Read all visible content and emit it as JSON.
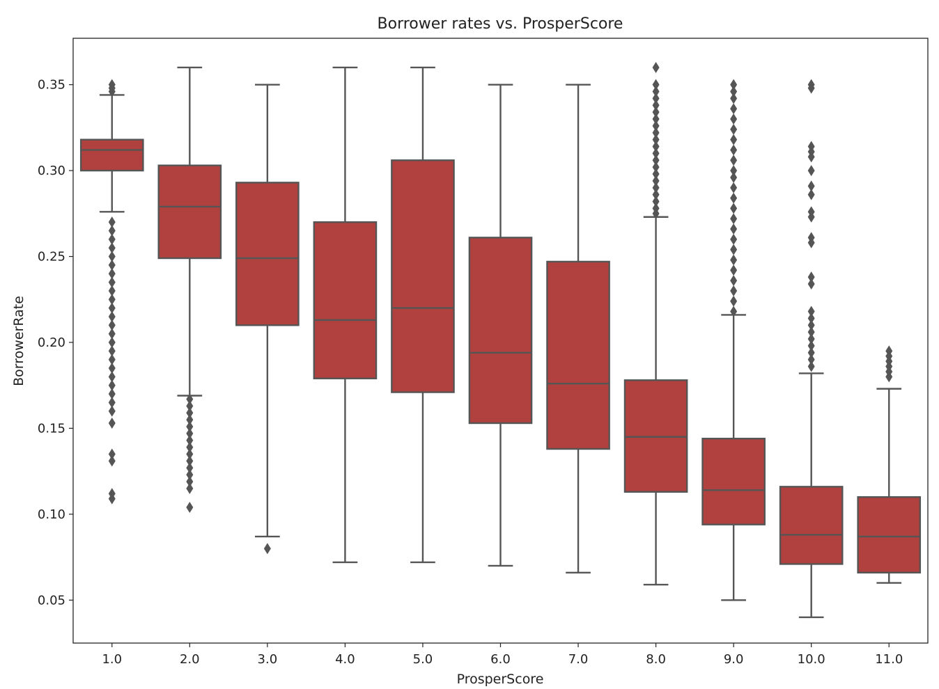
{
  "chart_data": {
    "type": "box",
    "title": "Borrower rates vs. ProsperScore",
    "xlabel": "ProsperScore",
    "ylabel": "BorrowerRate",
    "ylim": [
      0.025,
      0.377
    ],
    "yticks": [
      "0.05",
      "0.10",
      "0.15",
      "0.20",
      "0.25",
      "0.30",
      "0.35"
    ],
    "ytick_values": [
      0.05,
      0.1,
      0.15,
      0.2,
      0.25,
      0.3,
      0.35
    ],
    "categories": [
      "1.0",
      "2.0",
      "3.0",
      "4.0",
      "5.0",
      "6.0",
      "7.0",
      "8.0",
      "9.0",
      "10.0",
      "11.0"
    ],
    "grid": false,
    "box_color": "#b0413e",
    "line_color": "#555555",
    "boxes": [
      {
        "category": "1.0",
        "whislo": 0.276,
        "q1": 0.3,
        "median": 0.312,
        "q3": 0.318,
        "whishi": 0.344,
        "fliers": [
          0.35,
          0.348,
          0.346,
          0.27,
          0.265,
          0.26,
          0.255,
          0.25,
          0.245,
          0.24,
          0.235,
          0.23,
          0.225,
          0.22,
          0.215,
          0.21,
          0.205,
          0.2,
          0.195,
          0.19,
          0.185,
          0.18,
          0.175,
          0.17,
          0.165,
          0.16,
          0.153,
          0.135,
          0.131,
          0.112,
          0.109
        ]
      },
      {
        "category": "2.0",
        "whislo": 0.169,
        "q1": 0.249,
        "median": 0.279,
        "q3": 0.303,
        "whishi": 0.36,
        "fliers": [
          0.167,
          0.163,
          0.159,
          0.155,
          0.151,
          0.147,
          0.143,
          0.139,
          0.135,
          0.131,
          0.127,
          0.123,
          0.119,
          0.115,
          0.104
        ]
      },
      {
        "category": "3.0",
        "whislo": 0.087,
        "q1": 0.21,
        "median": 0.249,
        "q3": 0.293,
        "whishi": 0.35,
        "fliers": [
          0.08
        ]
      },
      {
        "category": "4.0",
        "whislo": 0.072,
        "q1": 0.179,
        "median": 0.213,
        "q3": 0.27,
        "whishi": 0.36,
        "fliers": []
      },
      {
        "category": "5.0",
        "whislo": 0.072,
        "q1": 0.171,
        "median": 0.22,
        "q3": 0.306,
        "whishi": 0.36,
        "fliers": []
      },
      {
        "category": "6.0",
        "whislo": 0.07,
        "q1": 0.153,
        "median": 0.194,
        "q3": 0.261,
        "whishi": 0.35,
        "fliers": []
      },
      {
        "category": "7.0",
        "whislo": 0.066,
        "q1": 0.138,
        "median": 0.176,
        "q3": 0.247,
        "whishi": 0.35,
        "fliers": []
      },
      {
        "category": "8.0",
        "whislo": 0.059,
        "q1": 0.113,
        "median": 0.145,
        "q3": 0.178,
        "whishi": 0.273,
        "fliers": [
          0.36,
          0.35,
          0.346,
          0.342,
          0.338,
          0.334,
          0.33,
          0.326,
          0.322,
          0.318,
          0.314,
          0.31,
          0.306,
          0.302,
          0.298,
          0.294,
          0.29,
          0.286,
          0.282,
          0.278,
          0.275
        ]
      },
      {
        "category": "9.0",
        "whislo": 0.05,
        "q1": 0.094,
        "median": 0.114,
        "q3": 0.144,
        "whishi": 0.216,
        "fliers": [
          0.35,
          0.346,
          0.342,
          0.336,
          0.33,
          0.324,
          0.318,
          0.312,
          0.306,
          0.3,
          0.296,
          0.29,
          0.284,
          0.278,
          0.272,
          0.266,
          0.26,
          0.254,
          0.248,
          0.242,
          0.236,
          0.23,
          0.224,
          0.218
        ]
      },
      {
        "category": "10.0",
        "whislo": 0.04,
        "q1": 0.071,
        "median": 0.088,
        "q3": 0.116,
        "whishi": 0.182,
        "fliers": [
          0.35,
          0.348,
          0.314,
          0.311,
          0.308,
          0.3,
          0.291,
          0.286,
          0.276,
          0.273,
          0.261,
          0.258,
          0.238,
          0.234,
          0.218,
          0.214,
          0.21,
          0.206,
          0.202,
          0.198,
          0.194,
          0.19,
          0.186
        ]
      },
      {
        "category": "11.0",
        "whislo": 0.06,
        "q1": 0.066,
        "median": 0.087,
        "q3": 0.11,
        "whishi": 0.173,
        "fliers": [
          0.195,
          0.192,
          0.189,
          0.186,
          0.183,
          0.18
        ]
      }
    ]
  }
}
